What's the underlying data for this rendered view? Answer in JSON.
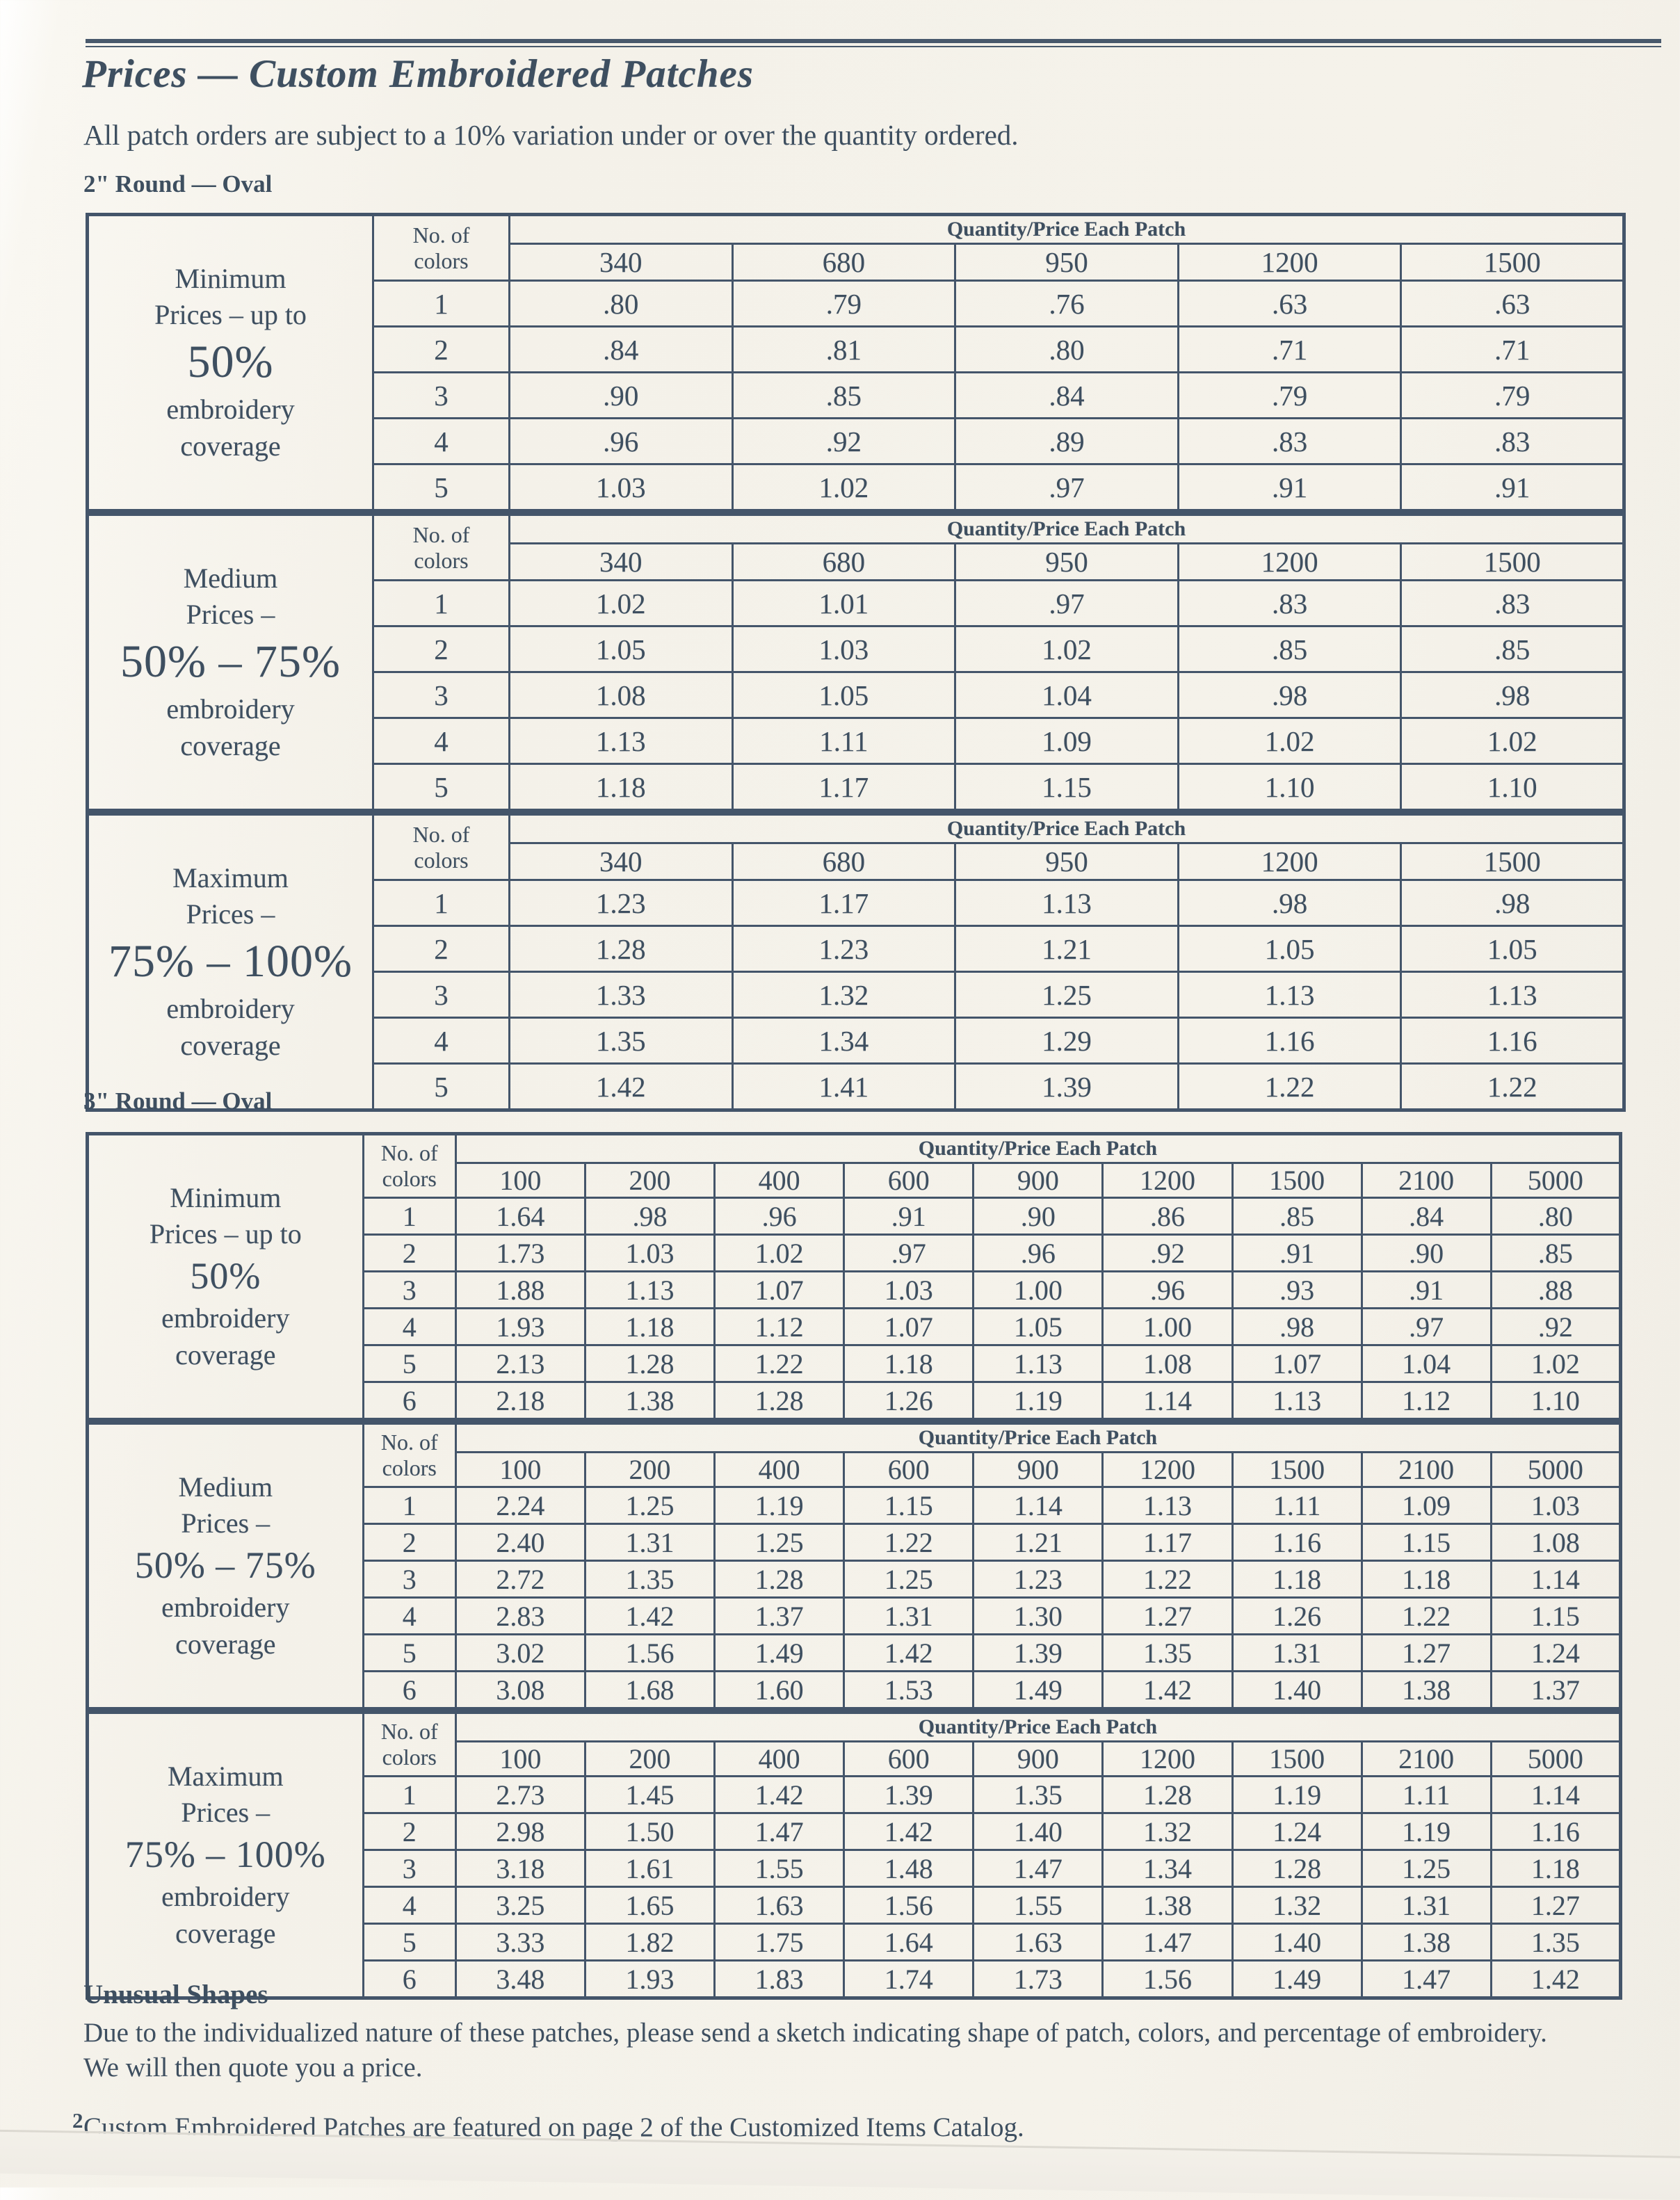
{
  "page": {
    "title": "Prices  — Custom Embroidered Patches",
    "subtitle": "All patch orders are subject to a 10% variation under or over the quantity ordered.",
    "page_number": "2"
  },
  "labels": {
    "colors_line1": "No. of",
    "colors_line2": "colors",
    "quantity_label": "Quantity/Price Each Patch"
  },
  "sections": [
    {
      "heading": "2\" Round — Oval",
      "quantities": [
        "340",
        "680",
        "950",
        "1200",
        "1500"
      ],
      "tables": [
        {
          "label_lines": [
            "Minimum",
            "Prices – up to",
            "50%",
            "embroidery",
            "coverage"
          ],
          "big_index": 2,
          "rows": [
            [
              "1",
              ".80",
              ".79",
              ".76",
              ".63",
              ".63"
            ],
            [
              "2",
              ".84",
              ".81",
              ".80",
              ".71",
              ".71"
            ],
            [
              "3",
              ".90",
              ".85",
              ".84",
              ".79",
              ".79"
            ],
            [
              "4",
              ".96",
              ".92",
              ".89",
              ".83",
              ".83"
            ],
            [
              "5",
              "1.03",
              "1.02",
              ".97",
              ".91",
              ".91"
            ]
          ]
        },
        {
          "label_lines": [
            "Medium",
            "Prices –",
            "50% – 75%",
            "embroidery",
            "coverage"
          ],
          "big_index": 2,
          "rows": [
            [
              "1",
              "1.02",
              "1.01",
              ".97",
              ".83",
              ".83"
            ],
            [
              "2",
              "1.05",
              "1.03",
              "1.02",
              ".85",
              ".85"
            ],
            [
              "3",
              "1.08",
              "1.05",
              "1.04",
              ".98",
              ".98"
            ],
            [
              "4",
              "1.13",
              "1.11",
              "1.09",
              "1.02",
              "1.02"
            ],
            [
              "5",
              "1.18",
              "1.17",
              "1.15",
              "1.10",
              "1.10"
            ]
          ]
        },
        {
          "label_lines": [
            "Maximum",
            "Prices –",
            "75% – 100%",
            "embroidery",
            "coverage"
          ],
          "big_index": 2,
          "rows": [
            [
              "1",
              "1.23",
              "1.17",
              "1.13",
              ".98",
              ".98"
            ],
            [
              "2",
              "1.28",
              "1.23",
              "1.21",
              "1.05",
              "1.05"
            ],
            [
              "3",
              "1.33",
              "1.32",
              "1.25",
              "1.13",
              "1.13"
            ],
            [
              "4",
              "1.35",
              "1.34",
              "1.29",
              "1.16",
              "1.16"
            ],
            [
              "5",
              "1.42",
              "1.41",
              "1.39",
              "1.22",
              "1.22"
            ]
          ]
        }
      ]
    },
    {
      "heading": "3\" Round — Oval",
      "quantities": [
        "100",
        "200",
        "400",
        "600",
        "900",
        "1200",
        "1500",
        "2100",
        "5000"
      ],
      "tables": [
        {
          "label_lines": [
            "Minimum",
            "Prices – up to",
            "50%",
            "embroidery",
            "coverage"
          ],
          "big_index": 2,
          "rows": [
            [
              "1",
              "1.64",
              ".98",
              ".96",
              ".91",
              ".90",
              ".86",
              ".85",
              ".84",
              ".80"
            ],
            [
              "2",
              "1.73",
              "1.03",
              "1.02",
              ".97",
              ".96",
              ".92",
              ".91",
              ".90",
              ".85"
            ],
            [
              "3",
              "1.88",
              "1.13",
              "1.07",
              "1.03",
              "1.00",
              ".96",
              ".93",
              ".91",
              ".88"
            ],
            [
              "4",
              "1.93",
              "1.18",
              "1.12",
              "1.07",
              "1.05",
              "1.00",
              ".98",
              ".97",
              ".92"
            ],
            [
              "5",
              "2.13",
              "1.28",
              "1.22",
              "1.18",
              "1.13",
              "1.08",
              "1.07",
              "1.04",
              "1.02"
            ],
            [
              "6",
              "2.18",
              "1.38",
              "1.28",
              "1.26",
              "1.19",
              "1.14",
              "1.13",
              "1.12",
              "1.10"
            ]
          ]
        },
        {
          "label_lines": [
            "Medium",
            "Prices –",
            "50% – 75%",
            "embroidery",
            "coverage"
          ],
          "big_index": 2,
          "rows": [
            [
              "1",
              "2.24",
              "1.25",
              "1.19",
              "1.15",
              "1.14",
              "1.13",
              "1.11",
              "1.09",
              "1.03"
            ],
            [
              "2",
              "2.40",
              "1.31",
              "1.25",
              "1.22",
              "1.21",
              "1.17",
              "1.16",
              "1.15",
              "1.08"
            ],
            [
              "3",
              "2.72",
              "1.35",
              "1.28",
              "1.25",
              "1.23",
              "1.22",
              "1.18",
              "1.18",
              "1.14"
            ],
            [
              "4",
              "2.83",
              "1.42",
              "1.37",
              "1.31",
              "1.30",
              "1.27",
              "1.26",
              "1.22",
              "1.15"
            ],
            [
              "5",
              "3.02",
              "1.56",
              "1.49",
              "1.42",
              "1.39",
              "1.35",
              "1.31",
              "1.27",
              "1.24"
            ],
            [
              "6",
              "3.08",
              "1.68",
              "1.60",
              "1.53",
              "1.49",
              "1.42",
              "1.40",
              "1.38",
              "1.37"
            ]
          ]
        },
        {
          "label_lines": [
            "Maximum",
            "Prices –",
            "75% – 100%",
            "embroidery",
            "coverage"
          ],
          "big_index": 2,
          "rows": [
            [
              "1",
              "2.73",
              "1.45",
              "1.42",
              "1.39",
              "1.35",
              "1.28",
              "1.19",
              "1.11",
              "1.14"
            ],
            [
              "2",
              "2.98",
              "1.50",
              "1.47",
              "1.42",
              "1.40",
              "1.32",
              "1.24",
              "1.19",
              "1.16"
            ],
            [
              "3",
              "3.18",
              "1.61",
              "1.55",
              "1.48",
              "1.47",
              "1.34",
              "1.28",
              "1.25",
              "1.18"
            ],
            [
              "4",
              "3.25",
              "1.65",
              "1.63",
              "1.56",
              "1.55",
              "1.38",
              "1.32",
              "1.31",
              "1.27"
            ],
            [
              "5",
              "3.33",
              "1.82",
              "1.75",
              "1.64",
              "1.63",
              "1.47",
              "1.40",
              "1.38",
              "1.35"
            ],
            [
              "6",
              "3.48",
              "1.93",
              "1.83",
              "1.74",
              "1.73",
              "1.56",
              "1.49",
              "1.47",
              "1.42"
            ]
          ]
        }
      ]
    }
  ],
  "footer": {
    "heading": "Unusual Shapes",
    "body_lines": [
      "Due to the individualized nature of these patches, please send a sketch indicating shape of patch, colors, and percentage of embroidery.",
      "We will then quote you a price."
    ],
    "note": "Custom Embroidered Patches are featured on page 2 of the Customized Items Catalog."
  }
}
